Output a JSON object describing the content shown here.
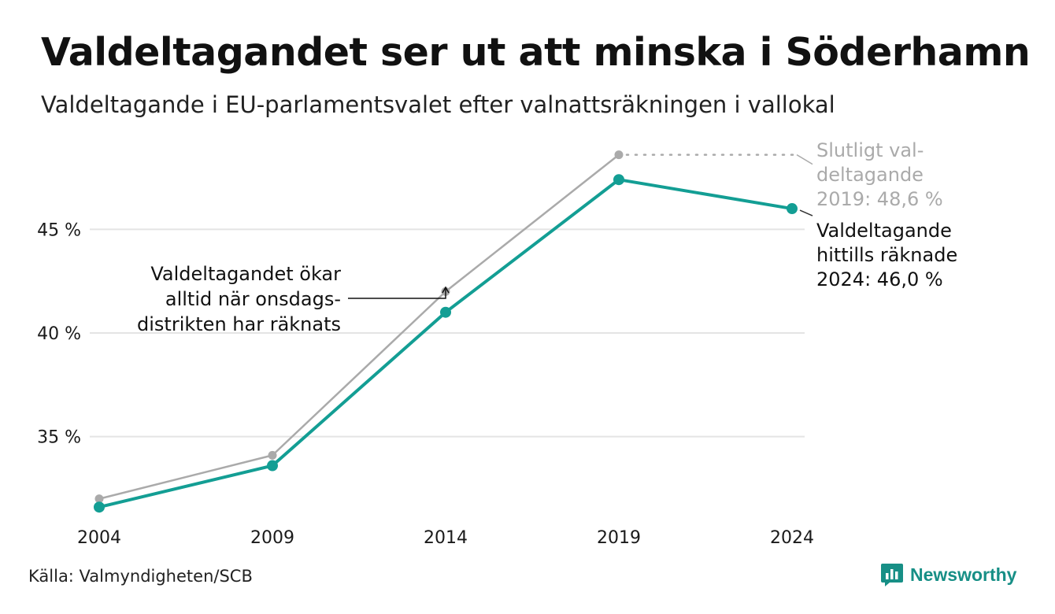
{
  "header": {
    "title": "Valdeltagandet ser ut att minska i Söderhamn",
    "subtitle": "Valdeltagande i EU-parlamentsvalet efter valnattsräkningen i vallokal"
  },
  "footer": {
    "source": "Källa: Valmyndigheten/SCB",
    "brand": "Newsworthy",
    "brand_icon": "newsworthy-logo-icon"
  },
  "colors": {
    "primary": "#139e94",
    "final": "#aaaaaa",
    "grid": "#e4e4e4",
    "brand": "#178f86"
  },
  "chart_data": {
    "type": "line",
    "title": "Valdeltagandet ser ut att minska i Söderhamn",
    "subtitle": "Valdeltagande i EU-parlamentsvalet efter valnattsräkningen i vallokal",
    "xlabel": "",
    "ylabel": "",
    "x": [
      "2004",
      "2009",
      "2014",
      "2019",
      "2024"
    ],
    "ylim": [
      31.0,
      49.8
    ],
    "yticks": [
      35,
      40,
      45
    ],
    "ytick_labels": [
      "35 %",
      "40 %",
      "45 %"
    ],
    "grid": true,
    "series": [
      {
        "values": [
          31.6,
          33.6,
          41.0,
          47.4,
          46.0
        ],
        "color": "#139e94"
      },
      {
        "values": [
          32.0,
          34.1,
          42.0,
          48.6,
          null
        ],
        "color": "#aaaaaa"
      }
    ],
    "annotations": {
      "final": [
        "Slutligt val-",
        "deltagande",
        "2019: 48,6 %"
      ],
      "current": [
        "Valdeltagande",
        "hittills räknade",
        "2024: 46,0 %"
      ],
      "note": [
        "Valdeltagandet ökar",
        "alltid när onsdags-",
        "distrikten har räknats"
      ]
    }
  }
}
